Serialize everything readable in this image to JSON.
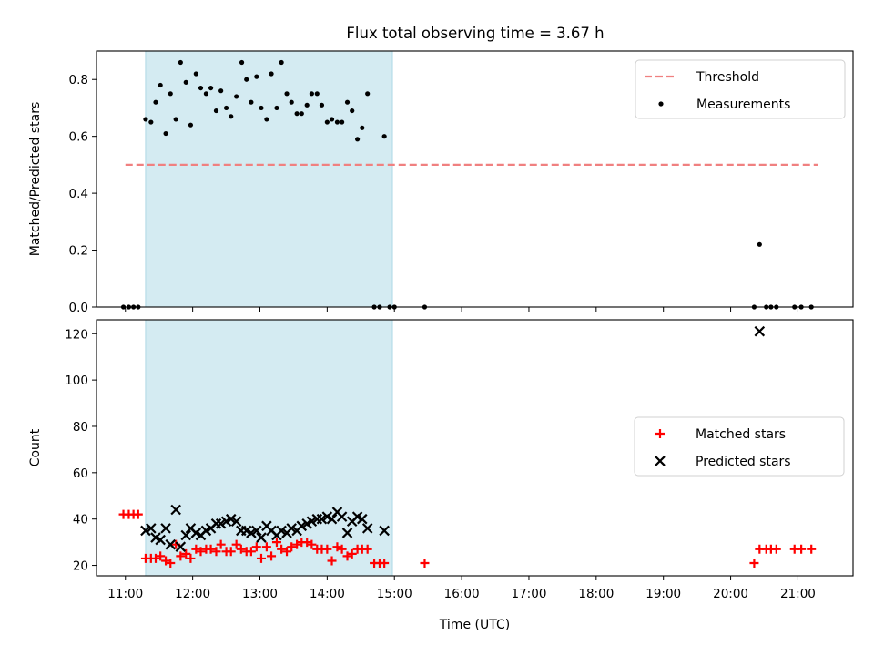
{
  "chart_data": {
    "type": "scatter",
    "title": "Flux total observing time = 3.67 h",
    "xlabel": "Time (UTC)",
    "x_ticks": [
      "11:00",
      "12:00",
      "13:00",
      "14:00",
      "15:00",
      "16:00",
      "17:00",
      "18:00",
      "19:00",
      "20:00",
      "21:00"
    ],
    "x_unit": "hours UTC",
    "xlim": [
      10.57,
      21.82
    ],
    "shaded_interval": [
      11.3,
      14.97
    ],
    "panels": [
      {
        "ylabel": "Matched/Predicted stars",
        "ylim": [
          0,
          0.9
        ],
        "y_ticks": [
          "0.0",
          "0.2",
          "0.4",
          "0.6",
          "0.8"
        ],
        "y_tick_values": [
          0,
          0.2,
          0.4,
          0.6,
          0.8
        ],
        "legend_position": "upper right",
        "series": [
          {
            "name": "Threshold",
            "kind": "dashed-line",
            "color": "#f08080",
            "points": [
              [
                11.0,
                0.5
              ],
              [
                21.3,
                0.5
              ]
            ]
          },
          {
            "name": "Measurements",
            "kind": "dots",
            "color": "#000000",
            "points": [
              [
                10.97,
                0.0
              ],
              [
                11.05,
                0.0
              ],
              [
                11.12,
                0.0
              ],
              [
                11.19,
                0.0
              ],
              [
                11.3,
                0.66
              ],
              [
                11.38,
                0.65
              ],
              [
                11.45,
                0.72
              ],
              [
                11.52,
                0.78
              ],
              [
                11.6,
                0.61
              ],
              [
                11.67,
                0.75
              ],
              [
                11.75,
                0.66
              ],
              [
                11.82,
                0.86
              ],
              [
                11.9,
                0.79
              ],
              [
                11.97,
                0.64
              ],
              [
                12.05,
                0.82
              ],
              [
                12.12,
                0.77
              ],
              [
                12.2,
                0.75
              ],
              [
                12.27,
                0.77
              ],
              [
                12.35,
                0.69
              ],
              [
                12.42,
                0.76
              ],
              [
                12.5,
                0.7
              ],
              [
                12.57,
                0.67
              ],
              [
                12.65,
                0.74
              ],
              [
                12.73,
                0.86
              ],
              [
                12.8,
                0.8
              ],
              [
                12.87,
                0.72
              ],
              [
                12.95,
                0.81
              ],
              [
                13.02,
                0.7
              ],
              [
                13.1,
                0.66
              ],
              [
                13.17,
                0.82
              ],
              [
                13.25,
                0.7
              ],
              [
                13.32,
                0.86
              ],
              [
                13.4,
                0.75
              ],
              [
                13.47,
                0.72
              ],
              [
                13.55,
                0.68
              ],
              [
                13.62,
                0.68
              ],
              [
                13.7,
                0.71
              ],
              [
                13.77,
                0.75
              ],
              [
                13.85,
                0.75
              ],
              [
                13.92,
                0.71
              ],
              [
                14.0,
                0.65
              ],
              [
                14.07,
                0.66
              ],
              [
                14.15,
                0.65
              ],
              [
                14.22,
                0.65
              ],
              [
                14.3,
                0.72
              ],
              [
                14.37,
                0.69
              ],
              [
                14.45,
                0.59
              ],
              [
                14.52,
                0.63
              ],
              [
                14.6,
                0.75
              ],
              [
                14.7,
                0.0
              ],
              [
                14.78,
                0.0
              ],
              [
                14.85,
                0.6
              ],
              [
                14.93,
                0.0
              ],
              [
                15.0,
                0.0
              ],
              [
                15.45,
                0.0
              ],
              [
                20.35,
                0.0
              ],
              [
                20.43,
                0.22
              ],
              [
                20.53,
                0.0
              ],
              [
                20.6,
                0.0
              ],
              [
                20.68,
                0.0
              ],
              [
                20.95,
                0.0
              ],
              [
                21.05,
                0.0
              ],
              [
                21.2,
                0.0
              ]
            ]
          }
        ]
      },
      {
        "ylabel": "Count",
        "ylim": [
          15.5,
          126
        ],
        "y_ticks": [
          "20",
          "40",
          "60",
          "80",
          "100",
          "120"
        ],
        "y_tick_values": [
          20,
          40,
          60,
          80,
          100,
          120
        ],
        "legend_position": "center right",
        "series": [
          {
            "name": "Matched stars",
            "kind": "plus",
            "color": "#ff0000",
            "points": [
              [
                10.97,
                42
              ],
              [
                11.05,
                42
              ],
              [
                11.12,
                42
              ],
              [
                11.19,
                42
              ],
              [
                11.3,
                23
              ],
              [
                11.38,
                23
              ],
              [
                11.45,
                23
              ],
              [
                11.52,
                24
              ],
              [
                11.6,
                22
              ],
              [
                11.67,
                21
              ],
              [
                11.75,
                29
              ],
              [
                11.82,
                24
              ],
              [
                11.9,
                25
              ],
              [
                11.97,
                23
              ],
              [
                12.05,
                27
              ],
              [
                12.12,
                26
              ],
              [
                12.2,
                27
              ],
              [
                12.27,
                27
              ],
              [
                12.35,
                26
              ],
              [
                12.42,
                29
              ],
              [
                12.5,
                26
              ],
              [
                12.57,
                26
              ],
              [
                12.65,
                29
              ],
              [
                12.72,
                27
              ],
              [
                12.8,
                26
              ],
              [
                12.87,
                26
              ],
              [
                12.95,
                28
              ],
              [
                13.02,
                23
              ],
              [
                13.1,
                28
              ],
              [
                13.17,
                24
              ],
              [
                13.25,
                30
              ],
              [
                13.32,
                27
              ],
              [
                13.4,
                26
              ],
              [
                13.47,
                28
              ],
              [
                13.55,
                29
              ],
              [
                13.62,
                30
              ],
              [
                13.7,
                30
              ],
              [
                13.77,
                29
              ],
              [
                13.85,
                27
              ],
              [
                13.92,
                27
              ],
              [
                14.0,
                27
              ],
              [
                14.07,
                22
              ],
              [
                14.15,
                28
              ],
              [
                14.22,
                27
              ],
              [
                14.3,
                24
              ],
              [
                14.37,
                25
              ],
              [
                14.45,
                27
              ],
              [
                14.52,
                27
              ],
              [
                14.6,
                27
              ],
              [
                14.7,
                21
              ],
              [
                14.78,
                21
              ],
              [
                14.85,
                21
              ],
              [
                15.45,
                21
              ],
              [
                20.35,
                21
              ],
              [
                20.43,
                27
              ],
              [
                20.53,
                27
              ],
              [
                20.6,
                27
              ],
              [
                20.68,
                27
              ],
              [
                20.95,
                27
              ],
              [
                21.05,
                27
              ],
              [
                21.2,
                27
              ]
            ]
          },
          {
            "name": "Predicted stars",
            "kind": "cross",
            "color": "#000000",
            "points": [
              [
                11.3,
                35
              ],
              [
                11.38,
                36
              ],
              [
                11.45,
                32
              ],
              [
                11.52,
                31
              ],
              [
                11.6,
                36
              ],
              [
                11.67,
                29
              ],
              [
                11.75,
                44
              ],
              [
                11.82,
                28
              ],
              [
                11.9,
                33
              ],
              [
                11.97,
                36
              ],
              [
                12.05,
                34
              ],
              [
                12.12,
                33
              ],
              [
                12.2,
                35
              ],
              [
                12.27,
                36
              ],
              [
                12.35,
                38
              ],
              [
                12.42,
                38
              ],
              [
                12.5,
                39
              ],
              [
                12.57,
                40
              ],
              [
                12.65,
                39
              ],
              [
                12.72,
                35
              ],
              [
                12.8,
                35
              ],
              [
                12.87,
                34
              ],
              [
                12.95,
                35
              ],
              [
                13.02,
                32
              ],
              [
                13.1,
                37
              ],
              [
                13.17,
                35
              ],
              [
                13.25,
                33
              ],
              [
                13.32,
                35
              ],
              [
                13.4,
                34
              ],
              [
                13.47,
                36
              ],
              [
                13.55,
                35
              ],
              [
                13.62,
                37
              ],
              [
                13.7,
                38
              ],
              [
                13.77,
                39
              ],
              [
                13.85,
                40
              ],
              [
                13.92,
                40
              ],
              [
                14.0,
                41
              ],
              [
                14.07,
                40
              ],
              [
                14.15,
                43
              ],
              [
                14.22,
                41
              ],
              [
                14.3,
                34
              ],
              [
                14.37,
                39
              ],
              [
                14.45,
                41
              ],
              [
                14.52,
                40
              ],
              [
                14.6,
                36
              ],
              [
                14.85,
                35
              ],
              [
                20.43,
                121
              ]
            ]
          }
        ]
      }
    ]
  }
}
